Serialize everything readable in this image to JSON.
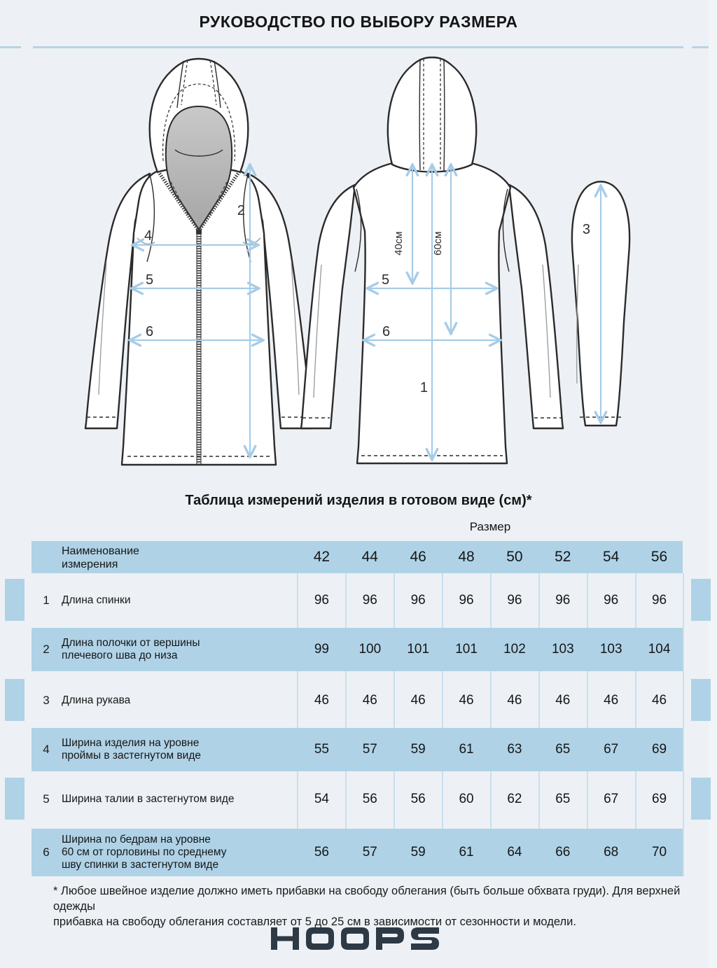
{
  "page": {
    "title": "РУКОВОДСТВО ПО ВЫБОРУ РАЗМЕРА",
    "table_title": "Таблица измерений изделия в готовом виде (см)*",
    "size_caption": "Размер",
    "header_name": "Наименование\nизмерения",
    "footnote": "* Любое швейное изделие должно иметь прибавки на свободу облегания (быть больше обхвата груди).  Для верхней одежды\nприбавка на свободу облегания составляет от 5 до 25 см в зависимости от сезонности и модели.",
    "brand": "HOOPS"
  },
  "diagram": {
    "front_length_label": "2",
    "chest_label": "4",
    "front_waist_label": "5",
    "front_hip_label": "6",
    "back_40_label": "40см",
    "back_60_label": "60см",
    "back_length_label": "1",
    "back_waist_label": "5",
    "back_hip_label": "6",
    "sleeve_label": "3"
  },
  "table": {
    "sizes": [
      "42",
      "44",
      "46",
      "48",
      "50",
      "52",
      "54",
      "56"
    ],
    "rows": [
      {
        "num": "1",
        "label": "Длина спинки",
        "values": [
          "96",
          "96",
          "96",
          "96",
          "96",
          "96",
          "96",
          "96"
        ]
      },
      {
        "num": "2",
        "label": "Длина полочки от вершины\nплечевого шва до низа",
        "values": [
          "99",
          "100",
          "101",
          "101",
          "102",
          "103",
          "103",
          "104"
        ]
      },
      {
        "num": "3",
        "label": "Длина рукава",
        "values": [
          "46",
          "46",
          "46",
          "46",
          "46",
          "46",
          "46",
          "46"
        ]
      },
      {
        "num": "4",
        "label": "Ширина изделия на уровне\nпроймы в застегнутом виде",
        "values": [
          "55",
          "57",
          "59",
          "61",
          "63",
          "65",
          "67",
          "69"
        ]
      },
      {
        "num": "5",
        "label": "Ширина талии в застегнутом виде",
        "values": [
          "54",
          "56",
          "56",
          "60",
          "62",
          "65",
          "67",
          "69"
        ]
      },
      {
        "num": "6",
        "label": "Ширина по бедрам на уровне\n60 см от горловины по среднему\nшву спинки в застегнутом виде",
        "values": [
          "56",
          "57",
          "59",
          "61",
          "64",
          "66",
          "68",
          "70"
        ]
      }
    ]
  },
  "colors": {
    "background": "#edf1f5",
    "accent_blue": "#afd2e6",
    "arrow_blue": "#a6cce8",
    "divider_blue": "#b9d2e2",
    "ink": "#1c1c1c",
    "logo": "#2d3944"
  }
}
